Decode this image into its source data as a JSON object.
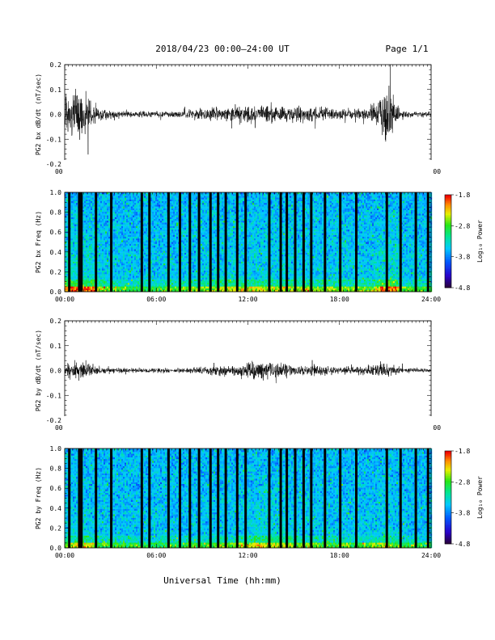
{
  "header": {
    "title": "2018/04/23  00:00–24:00 UT",
    "page": "Page 1/1"
  },
  "xaxis": {
    "label": "Universal Time (hh:mm)",
    "ticks": [
      "00:00",
      "06:00",
      "12:00",
      "18:00",
      "24:00"
    ],
    "range_hours": [
      0,
      24
    ]
  },
  "colorbar": {
    "label": "Log₁₀ Power",
    "tick_labels": [
      "-1.8",
      "-2.8",
      "-3.8",
      "-4.8"
    ],
    "range": [
      -4.8,
      -1.8
    ],
    "colormap": "rainbow"
  },
  "colors": {
    "background": "#ffffff",
    "trace": "#000000",
    "gap": "#000000"
  },
  "chart_data": [
    {
      "type": "line",
      "title": "",
      "ylabel": "PG2 bx dB/dt (nT/sec)",
      "ylim": [
        -0.2,
        0.2
      ],
      "yticks": [
        "0.2",
        "0.1",
        "0.0",
        "-0.1",
        "-0.2"
      ],
      "x_unit": "hours UT",
      "amplitude_envelope": {
        "x": [
          0,
          0.5,
          1.0,
          1.5,
          2,
          3,
          4,
          5,
          6,
          7,
          8,
          9,
          10,
          11,
          12,
          13,
          14,
          15,
          16,
          17,
          18,
          19,
          20,
          20.5,
          21,
          21.3,
          21.6,
          22,
          23,
          24
        ],
        "y": [
          0.06,
          0.08,
          0.1,
          0.08,
          0.03,
          0.015,
          0.01,
          0.01,
          0.01,
          0.012,
          0.015,
          0.02,
          0.025,
          0.028,
          0.028,
          0.028,
          0.025,
          0.025,
          0.025,
          0.022,
          0.02,
          0.018,
          0.02,
          0.04,
          0.1,
          0.08,
          0.05,
          0.015,
          0.01,
          0.01
        ]
      }
    },
    {
      "type": "heatmap",
      "title": "",
      "ylabel": "PG2 bx Freq (Hz)",
      "ylim": [
        0,
        1.0
      ],
      "yticks": [
        "1.0",
        "0.8",
        "0.6",
        "0.4",
        "0.2",
        "0.0"
      ],
      "zlim": [
        -4.8,
        -1.8
      ],
      "gaps_hours": [
        0.3,
        0.95,
        1.1,
        2.05,
        3.05,
        5.05,
        5.55,
        6.8,
        7.55,
        8.2,
        8.8,
        9.55,
        10.05,
        10.55,
        11.3,
        11.85,
        13.4,
        14.15,
        14.55,
        15.1,
        15.65,
        16.15,
        17.05,
        18.05,
        19.1,
        21.1,
        22.0,
        23.0,
        23.8
      ]
    },
    {
      "type": "line",
      "title": "",
      "ylabel": "PG2 by dB/dt (nT/sec)",
      "ylim": [
        -0.2,
        0.2
      ],
      "yticks": [
        "0.2",
        "0.1",
        "0.0",
        "-0.1",
        "-0.2"
      ],
      "x_unit": "hours UT",
      "amplitude_envelope": {
        "x": [
          0,
          0.5,
          1.0,
          1.5,
          2,
          3,
          4,
          5,
          6,
          7,
          8,
          9,
          10,
          11,
          12,
          12.5,
          13,
          14,
          15,
          16,
          17,
          18,
          19,
          20,
          20.5,
          21,
          21.3,
          22,
          23,
          24
        ],
        "y": [
          0.02,
          0.025,
          0.035,
          0.03,
          0.015,
          0.01,
          0.008,
          0.008,
          0.008,
          0.008,
          0.01,
          0.012,
          0.015,
          0.018,
          0.025,
          0.035,
          0.03,
          0.028,
          0.02,
          0.018,
          0.015,
          0.012,
          0.012,
          0.015,
          0.02,
          0.035,
          0.02,
          0.01,
          0.008,
          0.008
        ]
      }
    },
    {
      "type": "heatmap",
      "title": "",
      "ylabel": "PG2 by Freq (Hz)",
      "ylim": [
        0,
        1.0
      ],
      "yticks": [
        "1.0",
        "0.8",
        "0.6",
        "0.4",
        "0.2",
        "0.0"
      ],
      "zlim": [
        -4.8,
        -1.8
      ],
      "gaps_hours": [
        0.3,
        0.95,
        1.1,
        2.05,
        3.05,
        5.05,
        5.55,
        6.8,
        7.55,
        8.2,
        8.8,
        9.55,
        10.05,
        10.55,
        11.3,
        11.85,
        13.4,
        14.15,
        14.55,
        15.1,
        15.65,
        16.15,
        17.05,
        18.05,
        19.1,
        21.1,
        22.0,
        23.0,
        23.8
      ]
    }
  ]
}
